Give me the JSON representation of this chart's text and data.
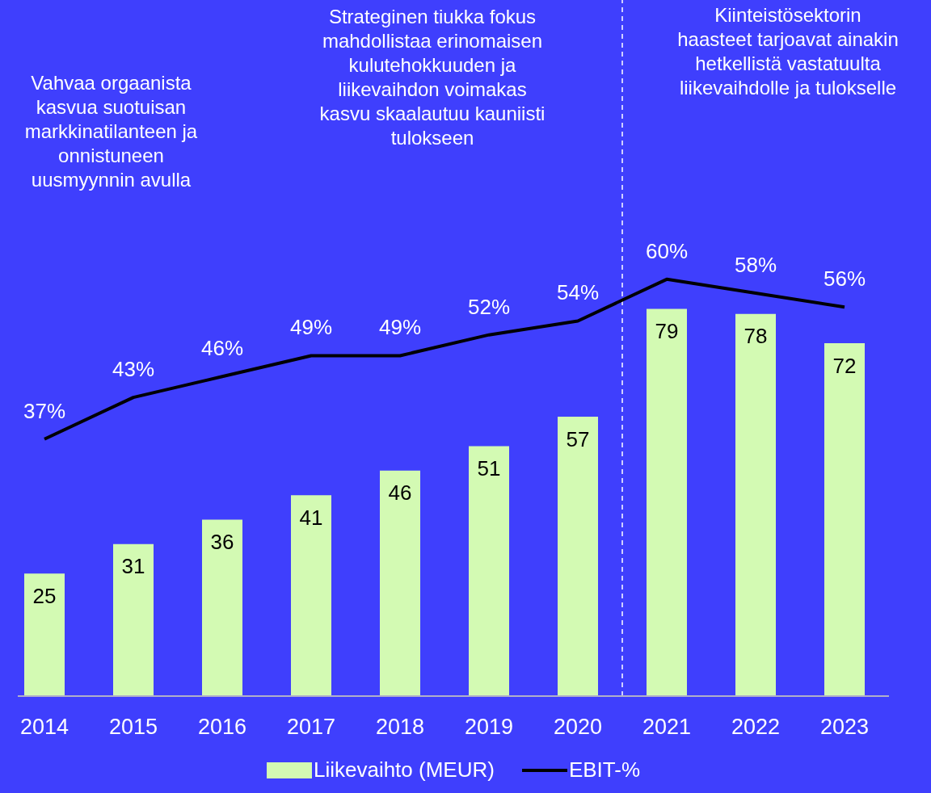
{
  "chart_data": {
    "type": "bar",
    "x": [
      2014,
      2015,
      2016,
      2017,
      2018,
      2019,
      2020,
      2021,
      2022,
      2023
    ],
    "xlim": [
      2013.7,
      2023.5
    ],
    "xticks": [
      2014,
      2015,
      2016,
      2017,
      2018,
      2019,
      2020,
      2021,
      2022,
      2023
    ],
    "series": [
      {
        "name": "Liikevaihto (MEUR)",
        "color": "#d3fab3",
        "values": [
          25,
          31,
          36,
          41,
          46,
          51,
          57,
          79,
          78,
          72
        ]
      },
      {
        "name": "EBIT-%",
        "type": "line",
        "axis": "y2",
        "color": "#000000",
        "values": [
          37,
          43,
          46,
          49,
          49,
          52,
          54,
          60,
          58,
          56
        ],
        "value_labels": [
          "37%",
          "43%",
          "46%",
          "49%",
          "49%",
          "52%",
          "54%",
          "60%",
          "58%",
          "56%"
        ]
      }
    ],
    "data_labels": true,
    "legend": "bottom",
    "grid": false,
    "marker": "none",
    "ref_lines": [
      {
        "axis": "x",
        "value": 2020.5,
        "color": "#ffffff",
        "line_style": "dashed"
      }
    ],
    "annotations": [
      "Vahvaa orgaanista\nkasvua suotuisan\nmarkkinatilanteen ja\nonnistuneen\nuusmyynnin avulla",
      "Strateginen tiukka fokus\nmahdollistaa erinomaisen\nkulutehokkuuden ja\nliikevaihdon voimakas\nkasvu skaalautuu kauniisti\ntulokseen",
      "Kiinteistösektorin\nhaasteet tarjoavat ainakin\nhetkellistä vastatuulta\nliikevaihdolle ja tulokselle"
    ]
  }
}
